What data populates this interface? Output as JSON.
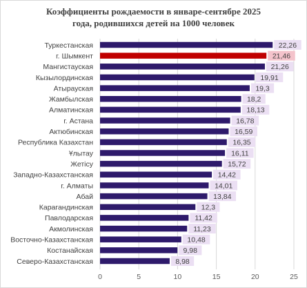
{
  "chart_data": {
    "type": "bar",
    "orientation": "horizontal",
    "title_line1": "Коэффициенты  рождаемости  в январе-сентябре  2025",
    "title_line2": "года, родившихся  детей на 1000 человек",
    "categories": [
      "Туркестанская",
      "г. Шымкент",
      "Мангистауская",
      "Кызылординская",
      "Атырауская",
      "Жамбылская",
      "Алматинская",
      "г. Астана",
      "Актюбинская",
      "Республика Казахстан",
      "Ұлытау",
      "Жетісу",
      "Западно-Казахстанская",
      "г. Алматы",
      "Абай",
      "Карагандинская",
      "Павлодарская",
      "Акмолинская",
      "Восточно-Казахстанская",
      "Костанайская",
      "Северо-Казахстанская"
    ],
    "values": [
      22.26,
      21.46,
      21.26,
      19.91,
      19.3,
      18.2,
      18.13,
      16.78,
      16.59,
      16.35,
      16.11,
      15.72,
      14.42,
      14.01,
      13.84,
      12.3,
      11.42,
      11.23,
      10.48,
      9.98,
      8.98
    ],
    "value_labels": [
      "22,26",
      "21,46",
      "21,26",
      "19,91",
      "19,3",
      "18,2",
      "18,13",
      "16,78",
      "16,59",
      "16,35",
      "16,11",
      "15,72",
      "14,42",
      "14,01",
      "13,84",
      "12,3",
      "11,42",
      "11,23",
      "10,48",
      "9,98",
      "8,98"
    ],
    "highlight_index": 1,
    "xlim": [
      0,
      25
    ],
    "xticks": [
      "0",
      "5",
      "10",
      "15",
      "20",
      "25"
    ],
    "grid": true,
    "legend": "none",
    "colors": {
      "bar": "#2e1a6b",
      "highlight_bar": "#c00000",
      "label_bg": "#ebdff3",
      "highlight_label_bg": "#f4c3cb",
      "grid": "#d9d9d9"
    }
  }
}
